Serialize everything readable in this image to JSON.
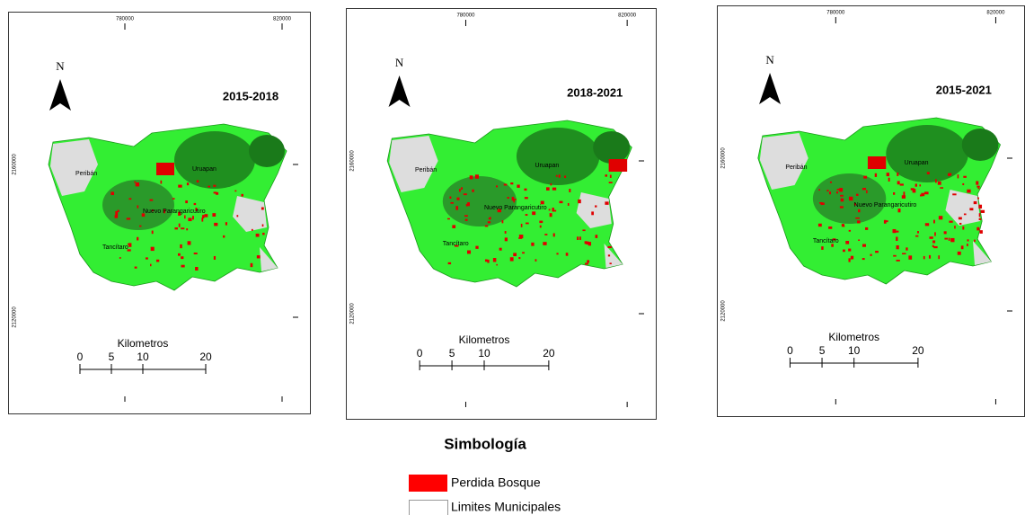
{
  "panels": [
    {
      "period": "2015-2018",
      "x_coords": [
        "780000",
        "820000"
      ],
      "y_coords": [
        "2160000",
        "2120000"
      ],
      "north": "N",
      "places": [
        "Peribán",
        "Uruapan",
        "Nuevo Parangaricutiro",
        "Tancítaro"
      ],
      "scale": {
        "title": "Kilometros",
        "ticks": [
          0,
          5,
          10,
          20
        ]
      }
    },
    {
      "period": "2018-2021",
      "x_coords": [
        "780000",
        "820000"
      ],
      "y_coords": [
        "2160000",
        "2120000"
      ],
      "north": "N",
      "places": [
        "Peribán",
        "Uruapan",
        "Nuevo Parangaricutiro",
        "Tancítaro"
      ],
      "scale": {
        "title": "Kilometros",
        "ticks": [
          0,
          5,
          10,
          20
        ]
      }
    },
    {
      "period": "2015-2021",
      "x_coords": [
        "780000",
        "820000"
      ],
      "y_coords": [
        "2160000",
        "2120000"
      ],
      "north": "N",
      "places": [
        "Peribán",
        "Uruapan",
        "Nuevo Parangaricutiro",
        "Tancítaro"
      ],
      "scale": {
        "title": "Kilometros",
        "ticks": [
          0,
          5,
          10,
          20
        ]
      }
    }
  ],
  "legend": {
    "title": "Simbología",
    "items": [
      "Perdida Bosque",
      "Limites Municipales"
    ]
  }
}
